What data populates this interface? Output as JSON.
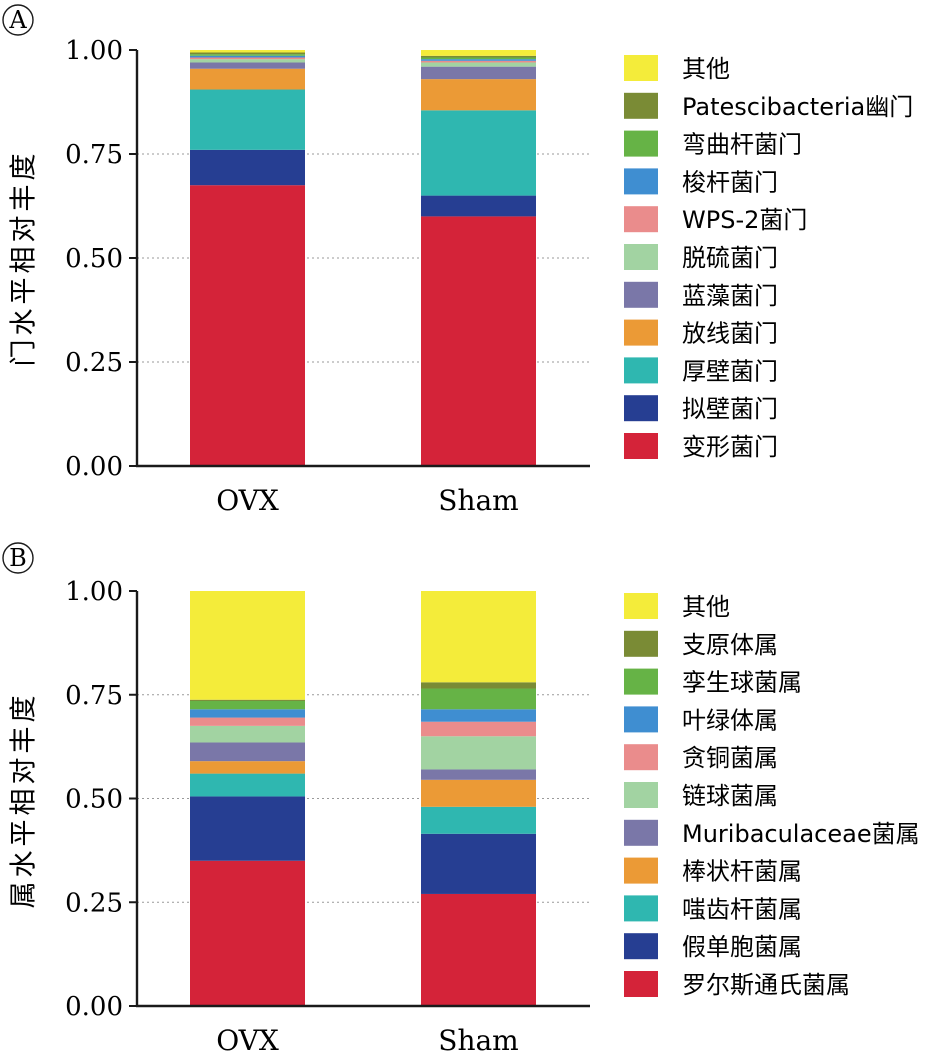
{
  "chart_data": [
    {
      "type": "bar",
      "panel_label": "A",
      "stacked": true,
      "title": "",
      "xlabel": "",
      "ylabel": "门水平相对丰度",
      "ylim": [
        0,
        1
      ],
      "yticks": [
        "0.00",
        "0.25",
        "0.50",
        "0.75",
        "1.00"
      ],
      "grid": "dotted horizontal at 0.25, 0.50, 0.75",
      "legend_position": "right",
      "categories": [
        "OVX",
        "Sham"
      ],
      "series": [
        {
          "name": "变形菌门",
          "color": "#d42339",
          "values": [
            0.675,
            0.6
          ]
        },
        {
          "name": "拟壁菌门",
          "color": "#263e92",
          "values": [
            0.085,
            0.05
          ]
        },
        {
          "name": "厚壁菌门",
          "color": "#2fb7b0",
          "values": [
            0.145,
            0.205
          ]
        },
        {
          "name": "放线菌门",
          "color": "#eb9a36",
          "values": [
            0.05,
            0.075
          ]
        },
        {
          "name": "蓝藻菌门",
          "color": "#7a77a8",
          "values": [
            0.015,
            0.03
          ]
        },
        {
          "name": "脱硫菌门",
          "color": "#a2d3a2",
          "values": [
            0.008,
            0.01
          ]
        },
        {
          "name": "WPS-2菌门",
          "color": "#ea8c8c",
          "values": [
            0.004,
            0.004
          ]
        },
        {
          "name": "梭杆菌门",
          "color": "#3f8ed1",
          "values": [
            0.004,
            0.004
          ]
        },
        {
          "name": "弯曲杆菌门",
          "color": "#66b346",
          "values": [
            0.004,
            0.004
          ]
        },
        {
          "name": "Patescibacteria幽门",
          "color": "#7a8b35",
          "values": [
            0.004,
            0.004
          ]
        },
        {
          "name": "其他",
          "color": "#f4ec3a",
          "values": [
            0.006,
            0.014
          ]
        }
      ]
    },
    {
      "type": "bar",
      "panel_label": "B",
      "stacked": true,
      "title": "",
      "xlabel": "",
      "ylabel": "属水平相对丰度",
      "ylim": [
        0,
        1
      ],
      "yticks": [
        "0.00",
        "0.25",
        "0.50",
        "0.75",
        "1.00"
      ],
      "grid": "dotted horizontal at 0.25, 0.50, 0.75",
      "legend_position": "right",
      "categories": [
        "OVX",
        "Sham"
      ],
      "series": [
        {
          "name": "罗尔斯通氏菌属",
          "color": "#d42339",
          "values": [
            0.35,
            0.27
          ]
        },
        {
          "name": "假单胞菌属",
          "color": "#263e92",
          "values": [
            0.155,
            0.145
          ]
        },
        {
          "name": "嗤齿杆菌属",
          "color": "#2fb7b0",
          "values": [
            0.055,
            0.065
          ]
        },
        {
          "name": "棒状杆菌属",
          "color": "#eb9a36",
          "values": [
            0.03,
            0.065
          ]
        },
        {
          "name": "Muribaculaceae菌属",
          "color": "#7a77a8",
          "values": [
            0.045,
            0.025
          ]
        },
        {
          "name": "链球菌属",
          "color": "#a2d3a2",
          "values": [
            0.04,
            0.08
          ]
        },
        {
          "name": "贪铜菌属",
          "color": "#ea8c8c",
          "values": [
            0.02,
            0.035
          ]
        },
        {
          "name": "叶绿体属",
          "color": "#3f8ed1",
          "values": [
            0.02,
            0.03
          ]
        },
        {
          "name": "孪生球菌属",
          "color": "#66b346",
          "values": [
            0.02,
            0.05
          ]
        },
        {
          "name": "支原体属",
          "color": "#7a8b35",
          "values": [
            0.003,
            0.015
          ]
        },
        {
          "name": "其他",
          "color": "#f4ec3a",
          "values": [
            0.262,
            0.22
          ]
        }
      ]
    }
  ]
}
